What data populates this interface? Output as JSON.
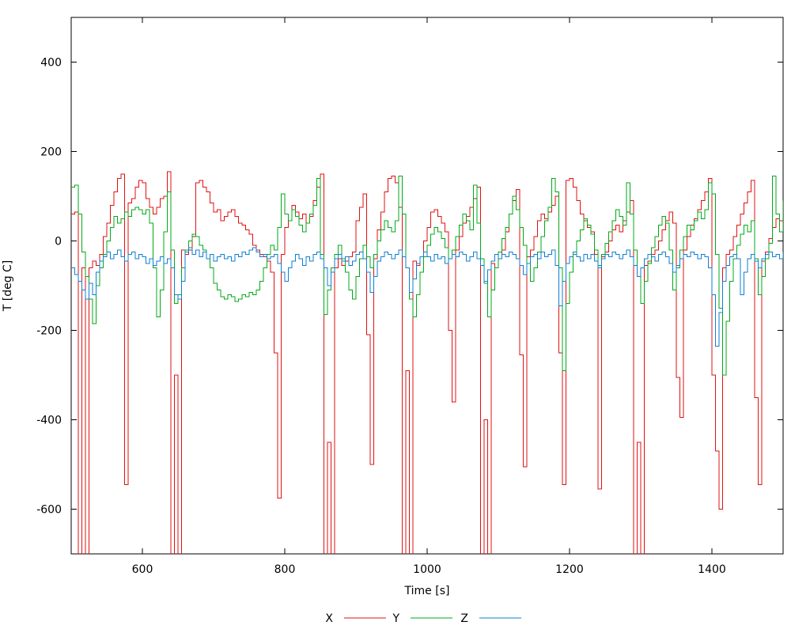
{
  "chart_data": {
    "type": "line",
    "style": "steps",
    "title": "",
    "xlabel": "Time [s]",
    "ylabel": "T [deg C]",
    "xlim": [
      500,
      1500
    ],
    "ylim": [
      -700,
      500
    ],
    "xticks": [
      600,
      800,
      1000,
      1200,
      1400
    ],
    "yticks": [
      400,
      200,
      0,
      -200,
      -400,
      -600
    ],
    "x_start": 500,
    "x_step": 5,
    "grid": false,
    "legend_position": "bottom-center",
    "background_color": "#ffffff",
    "axis_color": "#000000",
    "series": [
      {
        "name": "X",
        "color": "#e01010",
        "values": [
          60,
          65,
          -750,
          -60,
          -750,
          -60,
          -45,
          -55,
          -30,
          10,
          40,
          80,
          110,
          140,
          150,
          -545,
          85,
          95,
          120,
          135,
          130,
          95,
          75,
          60,
          75,
          95,
          100,
          155,
          -750,
          -300,
          -750,
          -20,
          -30,
          -20,
          10,
          130,
          135,
          120,
          110,
          85,
          65,
          70,
          45,
          55,
          65,
          70,
          55,
          40,
          35,
          25,
          15,
          -10,
          -20,
          -30,
          -35,
          -45,
          -70,
          -250,
          -575,
          -30,
          30,
          45,
          80,
          65,
          50,
          60,
          40,
          55,
          90,
          120,
          150,
          -750,
          -450,
          -750,
          -60,
          -40,
          -55,
          -45,
          -35,
          -25,
          45,
          75,
          105,
          -210,
          -500,
          -40,
          25,
          65,
          110,
          140,
          145,
          130,
          75,
          -750,
          -290,
          -750,
          -45,
          -55,
          -35,
          0,
          30,
          65,
          70,
          55,
          40,
          20,
          -200,
          -360,
          -20,
          10,
          40,
          55,
          75,
          95,
          120,
          -750,
          -400,
          -750,
          -50,
          -60,
          -40,
          -20,
          20,
          60,
          90,
          115,
          -255,
          -505,
          -35,
          -20,
          10,
          45,
          60,
          50,
          65,
          80,
          100,
          -250,
          -545,
          135,
          140,
          120,
          90,
          60,
          45,
          30,
          20,
          -30,
          -555,
          -35,
          -25,
          0,
          25,
          35,
          20,
          45,
          65,
          90,
          -750,
          -450,
          -750,
          -55,
          -45,
          -30,
          -20,
          0,
          25,
          45,
          65,
          40,
          -305,
          -395,
          -20,
          10,
          35,
          50,
          70,
          90,
          110,
          140,
          -300,
          -470,
          -600,
          -60,
          -30,
          -20,
          10,
          35,
          60,
          85,
          110,
          135,
          -350,
          -545,
          -45,
          -25,
          5,
          30,
          50,
          45,
          65
        ]
      },
      {
        "name": "Y",
        "color": "#00a819",
        "values": [
          120,
          125,
          60,
          -25,
          -80,
          -130,
          -185,
          -100,
          -60,
          -30,
          0,
          30,
          55,
          40,
          50,
          65,
          55,
          70,
          75,
          70,
          60,
          70,
          40,
          -60,
          -170,
          -110,
          20,
          110,
          -20,
          -140,
          -120,
          -60,
          -20,
          0,
          15,
          10,
          -10,
          -20,
          -40,
          -60,
          -95,
          -110,
          -125,
          -130,
          -120,
          -125,
          -135,
          -130,
          -120,
          -125,
          -115,
          -120,
          -110,
          -90,
          -60,
          -30,
          -10,
          -20,
          30,
          105,
          60,
          45,
          70,
          55,
          35,
          20,
          40,
          60,
          80,
          140,
          -30,
          -165,
          -110,
          -60,
          -30,
          -10,
          -40,
          -70,
          -110,
          -130,
          -80,
          -40,
          -10,
          -35,
          -60,
          -30,
          0,
          25,
          45,
          30,
          20,
          45,
          145,
          60,
          -60,
          -130,
          -170,
          -120,
          -70,
          -35,
          -10,
          15,
          30,
          20,
          5,
          -15,
          -40,
          -20,
          10,
          35,
          60,
          45,
          25,
          125,
          40,
          -40,
          -90,
          -170,
          -110,
          -60,
          -25,
          5,
          30,
          60,
          100,
          70,
          30,
          -10,
          -50,
          -90,
          -60,
          -25,
          10,
          45,
          75,
          140,
          110,
          -60,
          -290,
          -140,
          -70,
          -30,
          0,
          25,
          50,
          35,
          15,
          -20,
          -55,
          -30,
          -5,
          20,
          45,
          70,
          55,
          35,
          130,
          60,
          -20,
          -80,
          -140,
          -90,
          -50,
          -15,
          10,
          35,
          55,
          40,
          -20,
          -110,
          -60,
          -20,
          10,
          35,
          25,
          45,
          65,
          50,
          70,
          130,
          105,
          -30,
          -150,
          -300,
          -180,
          -90,
          -40,
          -10,
          15,
          35,
          20,
          45,
          -40,
          -120,
          -80,
          -40,
          -5,
          145,
          60,
          20,
          90
        ]
      },
      {
        "name": "Z",
        "color": "#0e7fd1",
        "values": [
          -60,
          -75,
          -90,
          -110,
          -130,
          -95,
          -120,
          -70,
          -45,
          -35,
          -25,
          -40,
          -30,
          -20,
          -35,
          -45,
          -30,
          -25,
          -40,
          -30,
          -35,
          -50,
          -40,
          -55,
          -45,
          -35,
          -50,
          -40,
          -60,
          -120,
          -130,
          -90,
          -25,
          -15,
          -30,
          -20,
          -35,
          -25,
          -40,
          -30,
          -45,
          -35,
          -30,
          -40,
          -35,
          -45,
          -30,
          -35,
          -25,
          -30,
          -20,
          -15,
          -25,
          -35,
          -30,
          -40,
          -35,
          -30,
          -50,
          -70,
          -90,
          -60,
          -45,
          -30,
          -40,
          -55,
          -35,
          -45,
          -30,
          -25,
          -40,
          -60,
          -100,
          -70,
          -40,
          -30,
          -45,
          -35,
          -55,
          -45,
          -30,
          -25,
          -40,
          -70,
          -115,
          -80,
          -45,
          -35,
          -25,
          -30,
          -40,
          -30,
          -20,
          -35,
          -60,
          -115,
          -85,
          -50,
          -35,
          -25,
          -35,
          -45,
          -30,
          -40,
          -35,
          -50,
          -40,
          -30,
          -35,
          -25,
          -30,
          -45,
          -35,
          -25,
          -40,
          -55,
          -95,
          -65,
          -45,
          -30,
          -40,
          -30,
          -35,
          -25,
          -30,
          -40,
          -55,
          -75,
          -50,
          -35,
          -30,
          -40,
          -25,
          -35,
          -30,
          -20,
          -55,
          -145,
          -90,
          -50,
          -35,
          -25,
          -35,
          -45,
          -30,
          -40,
          -30,
          -45,
          -60,
          -40,
          -30,
          -35,
          -25,
          -30,
          -40,
          -30,
          -20,
          -35,
          -55,
          -80,
          -60,
          -40,
          -30,
          -35,
          -45,
          -30,
          -25,
          -35,
          -50,
          -70,
          -55,
          -40,
          -30,
          -35,
          -25,
          -30,
          -40,
          -30,
          -35,
          -60,
          -120,
          -235,
          -160,
          -90,
          -55,
          -35,
          -30,
          -40,
          -120,
          -70,
          -40,
          -30,
          -45,
          -60,
          -40,
          -30,
          -25,
          -35,
          -30,
          -40,
          -25
        ]
      }
    ]
  }
}
